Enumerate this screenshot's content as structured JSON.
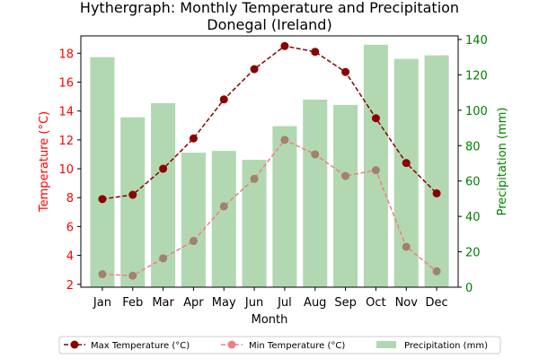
{
  "chart_data": {
    "type": "bar+line",
    "title": "Hythergraph: Monthly Temperature and Precipitation",
    "subtitle": "Donegal (Ireland)",
    "xlabel": "Month",
    "ylabel_left": "Temperature (°C)",
    "ylabel_right": "Precipitation (mm)",
    "categories": [
      "Jan",
      "Feb",
      "Mar",
      "Apr",
      "May",
      "Jun",
      "Jul",
      "Aug",
      "Sep",
      "Oct",
      "Nov",
      "Dec"
    ],
    "ylim_left": [
      1.8,
      19.2
    ],
    "yticks_left": [
      2,
      4,
      6,
      8,
      10,
      12,
      14,
      16,
      18
    ],
    "ylim_right": [
      0,
      142
    ],
    "yticks_right": [
      0,
      20,
      40,
      60,
      80,
      100,
      120,
      140
    ],
    "series": [
      {
        "name": "Max Temperature (°C)",
        "kind": "line",
        "axis": "left",
        "color": "#8b0000",
        "values": [
          7.9,
          8.2,
          10.0,
          12.1,
          14.8,
          16.9,
          18.5,
          18.1,
          16.7,
          13.5,
          10.4,
          8.3
        ]
      },
      {
        "name": "Min Temperature (°C)",
        "kind": "line",
        "axis": "left",
        "color": "#f08080",
        "values": [
          2.7,
          2.6,
          3.8,
          5.0,
          7.4,
          9.3,
          12.0,
          11.0,
          9.5,
          9.9,
          4.6,
          2.9
        ]
      },
      {
        "name": "Precipitation (mm)",
        "kind": "bar",
        "axis": "right",
        "color": "#b2d8b2",
        "values": [
          130,
          96,
          104,
          76,
          77,
          72,
          91,
          106,
          103,
          137,
          129,
          131
        ]
      }
    ],
    "colors": {
      "left_axis": "#ff0000",
      "right_axis": "#008000",
      "min_marker": "#a0826d"
    },
    "legend_position": "bottom-center",
    "grid": false
  }
}
